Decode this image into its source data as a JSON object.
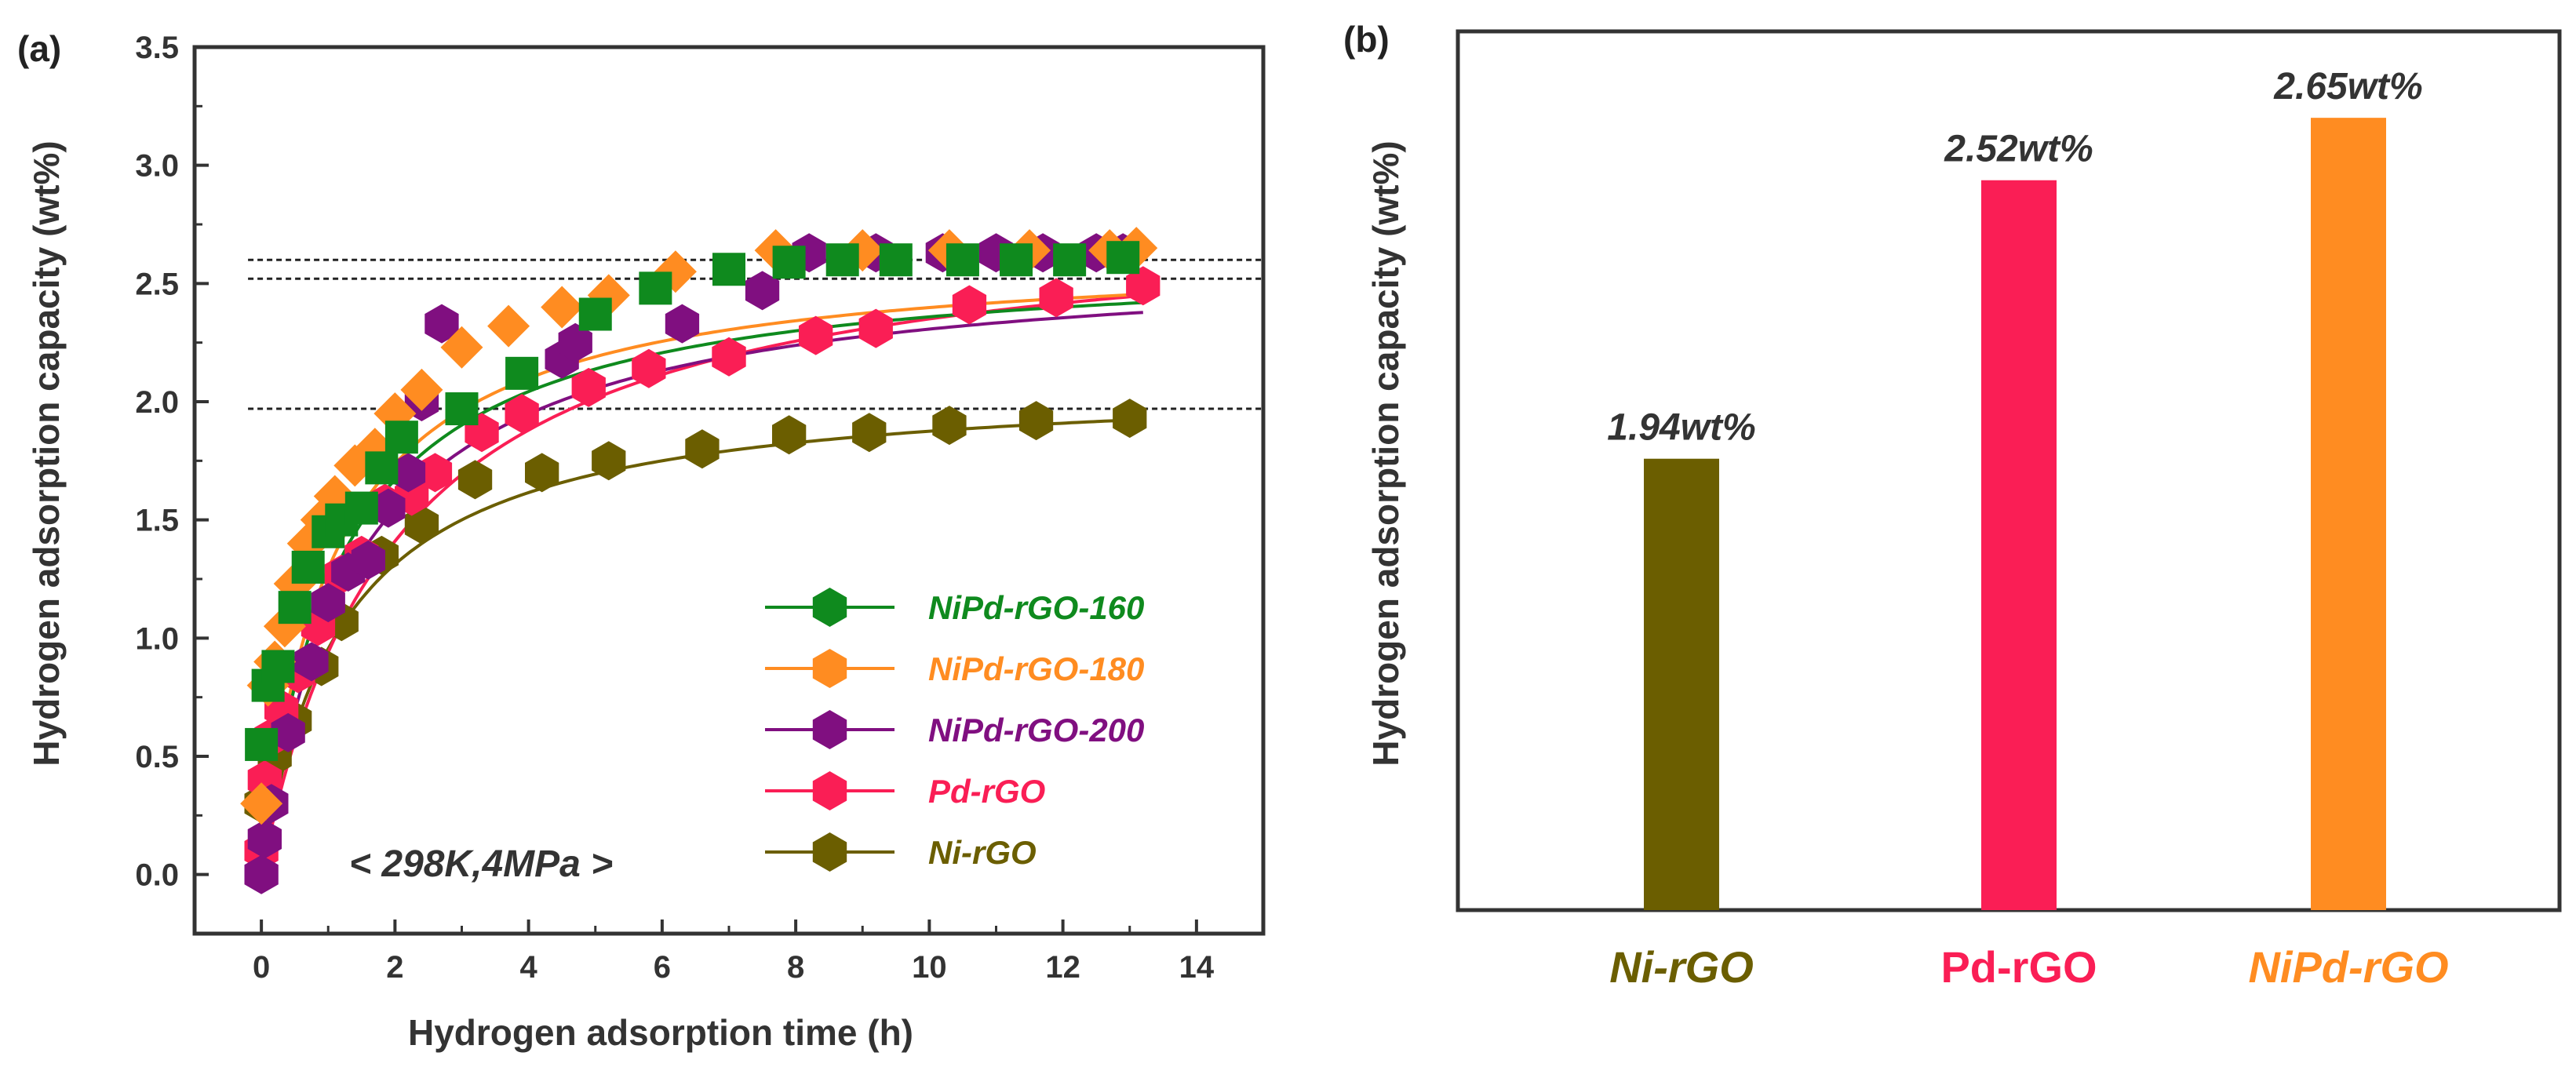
{
  "chart_data": [
    {
      "panel_label": "(a)",
      "type": "scatter",
      "xlabel": "Hydrogen adsorption time (h)",
      "ylabel": "Hydrogen adsorption capacity (wt%)",
      "xlim": [
        -1,
        15
      ],
      "ylim": [
        -0.25,
        3.5
      ],
      "xticks": [
        0,
        2,
        4,
        6,
        8,
        10,
        12,
        14
      ],
      "yticks": [
        0.0,
        0.5,
        1.0,
        1.5,
        2.0,
        2.5,
        3.0,
        3.5
      ],
      "xtick_labels": [
        "0",
        "2",
        "4",
        "6",
        "8",
        "10",
        "12",
        "14"
      ],
      "ytick_labels": [
        "0.0",
        "0.5",
        "1.0",
        "1.5",
        "2.0",
        "2.5",
        "3.0",
        "3.5"
      ],
      "condition": "< 298K,4MPa >",
      "reference_lines": [
        2.6,
        2.52,
        1.97
      ],
      "series": [
        {
          "name": "NiPd-rGO-160",
          "color": "#0f8a1e",
          "marker": "square",
          "legend_marker": "hexagon",
          "fit": [
            2.63,
            1.15
          ],
          "x": [
            0,
            0.1,
            0.25,
            0.5,
            0.7,
            1.0,
            1.2,
            1.5,
            1.8,
            2.1,
            3.0,
            3.9,
            5.0,
            5.9,
            7.0,
            7.9,
            8.7,
            9.5,
            10.5,
            11.3,
            12.1,
            12.9
          ],
          "y": [
            0.55,
            0.8,
            0.88,
            1.13,
            1.3,
            1.45,
            1.5,
            1.55,
            1.72,
            1.85,
            1.97,
            2.12,
            2.37,
            2.48,
            2.56,
            2.59,
            2.6,
            2.6,
            2.6,
            2.6,
            2.6,
            2.61
          ]
        },
        {
          "name": "NiPd-rGO-180",
          "color": "#ff8c21",
          "marker": "diamond",
          "legend_marker": "hexagon",
          "fit": [
            2.65,
            1.05
          ],
          "x": [
            0,
            0.1,
            0.2,
            0.35,
            0.5,
            0.7,
            0.9,
            1.1,
            1.4,
            1.7,
            2.0,
            2.4,
            3.0,
            3.7,
            4.5,
            5.2,
            6.2,
            7.7,
            9.0,
            10.3,
            11.5,
            12.7,
            13.1
          ],
          "y": [
            0.3,
            0.8,
            0.9,
            1.05,
            1.23,
            1.4,
            1.5,
            1.6,
            1.73,
            1.8,
            1.95,
            2.05,
            2.23,
            2.32,
            2.4,
            2.45,
            2.55,
            2.64,
            2.64,
            2.64,
            2.64,
            2.64,
            2.65
          ]
        },
        {
          "name": "NiPd-rGO-200",
          "color": "#800f80",
          "marker": "hexagon",
          "legend_marker": "hexagon",
          "fit": [
            2.63,
            1.4
          ],
          "x": [
            0,
            0.05,
            0.15,
            0.4,
            0.75,
            1.0,
            1.3,
            1.6,
            1.9,
            2.2,
            2.4,
            2.7,
            4.5,
            4.7,
            6.3,
            7.5,
            8.2,
            9.2,
            10.2,
            11.0,
            11.7,
            12.5,
            12.9
          ],
          "y": [
            0.0,
            0.15,
            0.3,
            0.6,
            0.9,
            1.15,
            1.28,
            1.33,
            1.55,
            1.7,
            2.0,
            2.33,
            2.18,
            2.25,
            2.33,
            2.47,
            2.63,
            2.63,
            2.63,
            2.63,
            2.63,
            2.63,
            2.63
          ]
        },
        {
          "name": "Pd-rGO",
          "color": "#fa1e55",
          "marker": "hexagon",
          "legend_marker": "hexagon",
          "fit": [
            2.82,
            2.0
          ],
          "x": [
            0,
            0.05,
            0.15,
            0.3,
            0.55,
            0.85,
            1.2,
            1.5,
            1.85,
            2.25,
            2.6,
            3.3,
            3.9,
            4.9,
            5.8,
            7.0,
            8.3,
            9.2,
            10.6,
            11.9,
            13.2
          ],
          "y": [
            0.1,
            0.4,
            0.58,
            0.7,
            0.85,
            1.05,
            1.27,
            1.35,
            1.57,
            1.6,
            1.7,
            1.87,
            1.95,
            2.06,
            2.14,
            2.19,
            2.28,
            2.31,
            2.41,
            2.44,
            2.49
          ]
        },
        {
          "name": "Ni-rGO",
          "color": "#6b5e00",
          "marker": "hexagon",
          "legend_marker": "hexagon",
          "fit": [
            2.1,
            1.2
          ],
          "x": [
            0,
            0.2,
            0.5,
            0.9,
            1.2,
            1.8,
            2.4,
            3.2,
            4.2,
            5.2,
            6.6,
            7.9,
            9.1,
            10.3,
            11.6,
            13.0
          ],
          "y": [
            0.3,
            0.5,
            0.65,
            0.88,
            1.07,
            1.35,
            1.48,
            1.67,
            1.7,
            1.75,
            1.8,
            1.86,
            1.87,
            1.9,
            1.92,
            1.93
          ]
        }
      ]
    },
    {
      "panel_label": "(b)",
      "type": "bar",
      "ylabel": "Hydrogen adsorption capacity (wt%)",
      "ylim": [
        1.0,
        2.83
      ],
      "categories": [
        "Ni-rGO",
        "Pd-rGO",
        "NiPd-rGO"
      ],
      "category_italic": [
        true,
        false,
        true
      ],
      "values": [
        1.94,
        2.52,
        2.65
      ],
      "value_labels": [
        "1.94wt%",
        "2.52wt%",
        "2.65wt%"
      ],
      "colors": [
        "#6b5e00",
        "#fa1e55",
        "#ff8c21"
      ]
    }
  ]
}
